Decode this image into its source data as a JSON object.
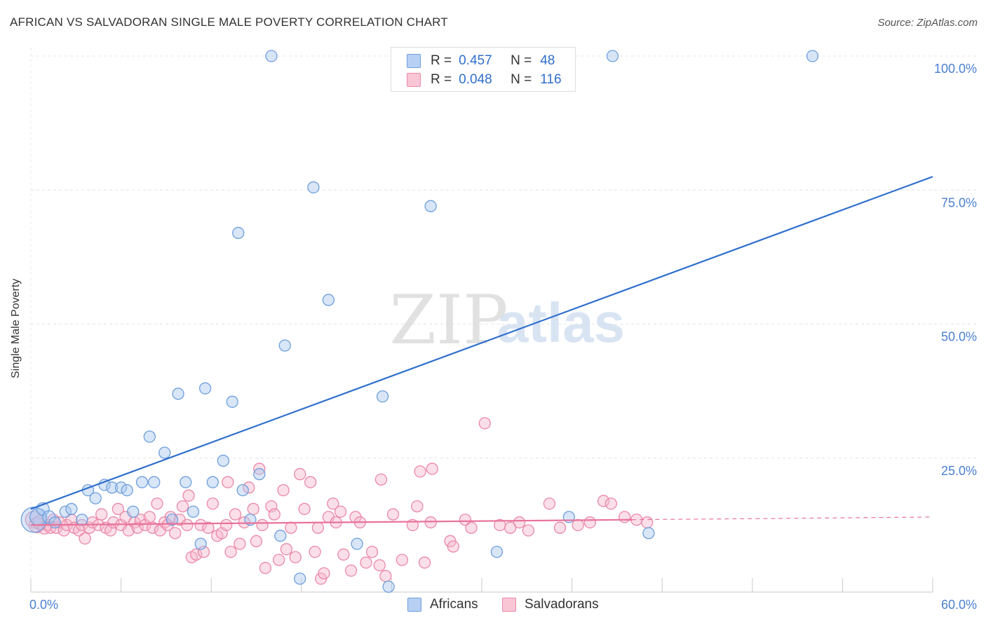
{
  "title": "AFRICAN VS SALVADORAN SINGLE MALE POVERTY CORRELATION CHART",
  "source": "Source: ZipAtlas.com",
  "watermark": {
    "zip": "ZIP",
    "atlas": "atlas"
  },
  "colors": {
    "africans_fill": "#a9c7f0",
    "africans_stroke": "#6f9fdc",
    "africans_line": "#2f6fcc",
    "salvadorans_fill": "#f7b8cb",
    "salvadorans_stroke": "#ea88a8",
    "salvadorans_line": "#e8739a",
    "grid": "#e4e4e4",
    "axis_text": "#4a7fd0"
  },
  "legend_top": {
    "africans": {
      "r_label": "R =",
      "r_value": "0.457",
      "n_label": "N =",
      "n_value": "48"
    },
    "salvadorans": {
      "r_label": "R =",
      "r_value": "0.048",
      "n_label": "N =",
      "n_value": "116"
    }
  },
  "legend_bottom": {
    "africans": "Africans",
    "salvadorans": "Salvadorans"
  },
  "chart_data": {
    "type": "scatter",
    "title": "AFRICAN VS SALVADORAN SINGLE MALE POVERTY CORRELATION CHART",
    "xlabel": "",
    "ylabel": "Single Male Poverty",
    "xlim": [
      0,
      60
    ],
    "ylim": [
      0,
      100
    ],
    "x_tick_labels": [
      "0.0%",
      "60.0%"
    ],
    "y_tick_labels": [
      "25.0%",
      "50.0%",
      "75.0%",
      "100.0%"
    ],
    "y_ticks": [
      25,
      50,
      75,
      100
    ],
    "grid": true,
    "legend_position": "bottom",
    "series": [
      {
        "name": "Africans",
        "r": 0.457,
        "n": 48,
        "trend": {
          "x": [
            0,
            60
          ],
          "y": [
            15.5,
            77.5
          ],
          "style": "solid"
        },
        "points": [
          {
            "x": 0.2,
            "y": 13.5,
            "s": 18
          },
          {
            "x": 0.5,
            "y": 14.0,
            "s": 12
          },
          {
            "x": 0.8,
            "y": 15.5,
            "s": 9
          },
          {
            "x": 1.2,
            "y": 14.0,
            "s": 9
          },
          {
            "x": 1.6,
            "y": 13.0,
            "s": 8
          },
          {
            "x": 2.3,
            "y": 15.0,
            "s": 8
          },
          {
            "x": 2.7,
            "y": 15.5,
            "s": 8
          },
          {
            "x": 3.4,
            "y": 13.5,
            "s": 8
          },
          {
            "x": 3.8,
            "y": 19.0,
            "s": 8
          },
          {
            "x": 4.3,
            "y": 17.5,
            "s": 8
          },
          {
            "x": 4.9,
            "y": 20.0,
            "s": 8
          },
          {
            "x": 5.4,
            "y": 19.5,
            "s": 8
          },
          {
            "x": 6.0,
            "y": 19.5,
            "s": 8
          },
          {
            "x": 6.4,
            "y": 19.0,
            "s": 8
          },
          {
            "x": 6.8,
            "y": 15.0,
            "s": 8
          },
          {
            "x": 7.4,
            "y": 20.5,
            "s": 8
          },
          {
            "x": 7.9,
            "y": 29.0,
            "s": 8
          },
          {
            "x": 8.2,
            "y": 20.5,
            "s": 8
          },
          {
            "x": 8.9,
            "y": 26.0,
            "s": 8
          },
          {
            "x": 9.4,
            "y": 13.5,
            "s": 8
          },
          {
            "x": 9.8,
            "y": 37.0,
            "s": 8
          },
          {
            "x": 10.3,
            "y": 20.5,
            "s": 8
          },
          {
            "x": 10.8,
            "y": 15.0,
            "s": 8
          },
          {
            "x": 11.3,
            "y": 9.0,
            "s": 8
          },
          {
            "x": 11.6,
            "y": 38.0,
            "s": 8
          },
          {
            "x": 12.1,
            "y": 20.5,
            "s": 8
          },
          {
            "x": 12.8,
            "y": 24.5,
            "s": 8
          },
          {
            "x": 13.4,
            "y": 35.5,
            "s": 8
          },
          {
            "x": 13.8,
            "y": 67.0,
            "s": 8
          },
          {
            "x": 14.1,
            "y": 19.0,
            "s": 8
          },
          {
            "x": 14.6,
            "y": 13.5,
            "s": 8
          },
          {
            "x": 15.2,
            "y": 22.0,
            "s": 8
          },
          {
            "x": 16.0,
            "y": 100.0,
            "s": 8
          },
          {
            "x": 16.6,
            "y": 10.5,
            "s": 8
          },
          {
            "x": 16.9,
            "y": 46.0,
            "s": 8
          },
          {
            "x": 17.9,
            "y": 2.5,
            "s": 8
          },
          {
            "x": 18.8,
            "y": 75.5,
            "s": 8
          },
          {
            "x": 19.8,
            "y": 54.5,
            "s": 8
          },
          {
            "x": 21.7,
            "y": 9.0,
            "s": 8
          },
          {
            "x": 23.4,
            "y": 36.5,
            "s": 8
          },
          {
            "x": 23.8,
            "y": 1.0,
            "s": 8
          },
          {
            "x": 26.6,
            "y": 72.0,
            "s": 8
          },
          {
            "x": 28.0,
            "y": 100.0,
            "s": 8
          },
          {
            "x": 31.0,
            "y": 7.5,
            "s": 8
          },
          {
            "x": 35.8,
            "y": 14.0,
            "s": 8
          },
          {
            "x": 38.7,
            "y": 100.0,
            "s": 8
          },
          {
            "x": 41.1,
            "y": 11.0,
            "s": 8
          },
          {
            "x": 52.0,
            "y": 100.0,
            "s": 8
          }
        ]
      },
      {
        "name": "Salvadorans",
        "r": 0.048,
        "n": 116,
        "trend": {
          "x": [
            0,
            40
          ],
          "y": [
            12.5,
            13.5
          ],
          "style": "solid",
          "extension": {
            "x": [
              40,
              60
            ],
            "y": [
              13.5,
              14.0
            ],
            "style": "dashed"
          }
        },
        "points": [
          {
            "x": 0.2,
            "y": 13.5,
            "s": 12
          },
          {
            "x": 0.4,
            "y": 12.5,
            "s": 11
          },
          {
            "x": 0.6,
            "y": 13.0,
            "s": 10
          },
          {
            "x": 0.9,
            "y": 12.0,
            "s": 9
          },
          {
            "x": 1.1,
            "y": 12.5,
            "s": 8
          },
          {
            "x": 1.3,
            "y": 12.0,
            "s": 8
          },
          {
            "x": 1.5,
            "y": 13.5,
            "s": 8
          },
          {
            "x": 1.7,
            "y": 12.0,
            "s": 8
          },
          {
            "x": 1.9,
            "y": 13.0,
            "s": 8
          },
          {
            "x": 2.2,
            "y": 11.5,
            "s": 8
          },
          {
            "x": 2.4,
            "y": 12.5,
            "s": 8
          },
          {
            "x": 2.7,
            "y": 13.5,
            "s": 8
          },
          {
            "x": 2.9,
            "y": 12.0,
            "s": 8
          },
          {
            "x": 3.2,
            "y": 11.5,
            "s": 8
          },
          {
            "x": 3.4,
            "y": 12.5,
            "s": 8
          },
          {
            "x": 3.6,
            "y": 10.0,
            "s": 8
          },
          {
            "x": 3.9,
            "y": 12.0,
            "s": 8
          },
          {
            "x": 4.1,
            "y": 13.0,
            "s": 8
          },
          {
            "x": 4.5,
            "y": 12.5,
            "s": 8
          },
          {
            "x": 4.7,
            "y": 14.5,
            "s": 8
          },
          {
            "x": 5.0,
            "y": 12.0,
            "s": 8
          },
          {
            "x": 5.3,
            "y": 11.5,
            "s": 8
          },
          {
            "x": 5.5,
            "y": 13.0,
            "s": 8
          },
          {
            "x": 5.8,
            "y": 15.5,
            "s": 8
          },
          {
            "x": 6.0,
            "y": 12.5,
            "s": 8
          },
          {
            "x": 6.3,
            "y": 14.0,
            "s": 8
          },
          {
            "x": 6.5,
            "y": 11.5,
            "s": 8
          },
          {
            "x": 6.9,
            "y": 13.0,
            "s": 8
          },
          {
            "x": 7.1,
            "y": 12.0,
            "s": 8
          },
          {
            "x": 7.3,
            "y": 13.5,
            "s": 8
          },
          {
            "x": 7.6,
            "y": 12.5,
            "s": 8
          },
          {
            "x": 7.9,
            "y": 14.0,
            "s": 8
          },
          {
            "x": 8.1,
            "y": 12.0,
            "s": 8
          },
          {
            "x": 8.4,
            "y": 16.5,
            "s": 8
          },
          {
            "x": 8.6,
            "y": 11.5,
            "s": 8
          },
          {
            "x": 8.9,
            "y": 13.0,
            "s": 8
          },
          {
            "x": 9.1,
            "y": 12.5,
            "s": 8
          },
          {
            "x": 9.3,
            "y": 14.0,
            "s": 8
          },
          {
            "x": 9.6,
            "y": 11.0,
            "s": 8
          },
          {
            "x": 9.9,
            "y": 13.5,
            "s": 8
          },
          {
            "x": 10.1,
            "y": 16.0,
            "s": 8
          },
          {
            "x": 10.4,
            "y": 12.5,
            "s": 8
          },
          {
            "x": 10.5,
            "y": 18.0,
            "s": 8
          },
          {
            "x": 10.7,
            "y": 6.5,
            "s": 8
          },
          {
            "x": 11.0,
            "y": 7.0,
            "s": 8
          },
          {
            "x": 11.3,
            "y": 12.5,
            "s": 8
          },
          {
            "x": 11.5,
            "y": 7.5,
            "s": 8
          },
          {
            "x": 11.8,
            "y": 12.0,
            "s": 8
          },
          {
            "x": 12.1,
            "y": 16.5,
            "s": 8
          },
          {
            "x": 12.4,
            "y": 10.5,
            "s": 8
          },
          {
            "x": 12.7,
            "y": 11.0,
            "s": 8
          },
          {
            "x": 13.0,
            "y": 12.5,
            "s": 8
          },
          {
            "x": 13.1,
            "y": 20.5,
            "s": 8
          },
          {
            "x": 13.3,
            "y": 7.5,
            "s": 8
          },
          {
            "x": 13.6,
            "y": 14.5,
            "s": 8
          },
          {
            "x": 13.9,
            "y": 9.0,
            "s": 8
          },
          {
            "x": 14.2,
            "y": 13.0,
            "s": 8
          },
          {
            "x": 14.5,
            "y": 19.5,
            "s": 8
          },
          {
            "x": 14.8,
            "y": 15.5,
            "s": 8
          },
          {
            "x": 15.0,
            "y": 9.5,
            "s": 8
          },
          {
            "x": 15.2,
            "y": 23.0,
            "s": 8
          },
          {
            "x": 15.4,
            "y": 12.5,
            "s": 8
          },
          {
            "x": 15.6,
            "y": 4.5,
            "s": 8
          },
          {
            "x": 16.0,
            "y": 16.0,
            "s": 8
          },
          {
            "x": 16.2,
            "y": 14.5,
            "s": 8
          },
          {
            "x": 16.5,
            "y": 6.0,
            "s": 8
          },
          {
            "x": 16.8,
            "y": 19.0,
            "s": 8
          },
          {
            "x": 17.0,
            "y": 8.0,
            "s": 8
          },
          {
            "x": 17.3,
            "y": 12.0,
            "s": 8
          },
          {
            "x": 17.6,
            "y": 6.5,
            "s": 8
          },
          {
            "x": 17.9,
            "y": 22.0,
            "s": 8
          },
          {
            "x": 18.2,
            "y": 15.5,
            "s": 8
          },
          {
            "x": 18.6,
            "y": 20.5,
            "s": 8
          },
          {
            "x": 18.9,
            "y": 7.5,
            "s": 8
          },
          {
            "x": 19.1,
            "y": 12.0,
            "s": 8
          },
          {
            "x": 19.3,
            "y": 2.5,
            "s": 8
          },
          {
            "x": 19.5,
            "y": 3.5,
            "s": 8
          },
          {
            "x": 19.8,
            "y": 14.0,
            "s": 8
          },
          {
            "x": 20.1,
            "y": 16.5,
            "s": 8
          },
          {
            "x": 20.3,
            "y": 13.0,
            "s": 8
          },
          {
            "x": 20.6,
            "y": 15.0,
            "s": 8
          },
          {
            "x": 20.8,
            "y": 7.0,
            "s": 8
          },
          {
            "x": 21.3,
            "y": 4.0,
            "s": 8
          },
          {
            "x": 21.6,
            "y": 14.0,
            "s": 8
          },
          {
            "x": 21.9,
            "y": 13.0,
            "s": 8
          },
          {
            "x": 22.3,
            "y": 5.5,
            "s": 8
          },
          {
            "x": 22.7,
            "y": 7.5,
            "s": 8
          },
          {
            "x": 23.2,
            "y": 5.0,
            "s": 8
          },
          {
            "x": 23.3,
            "y": 21.0,
            "s": 8
          },
          {
            "x": 23.6,
            "y": 3.0,
            "s": 8
          },
          {
            "x": 24.1,
            "y": 14.5,
            "s": 8
          },
          {
            "x": 24.7,
            "y": 6.0,
            "s": 8
          },
          {
            "x": 25.4,
            "y": 12.5,
            "s": 8
          },
          {
            "x": 25.7,
            "y": 16.0,
            "s": 8
          },
          {
            "x": 25.9,
            "y": 22.5,
            "s": 8
          },
          {
            "x": 26.2,
            "y": 5.5,
            "s": 8
          },
          {
            "x": 26.6,
            "y": 13.0,
            "s": 8
          },
          {
            "x": 26.7,
            "y": 23.0,
            "s": 8
          },
          {
            "x": 27.9,
            "y": 9.5,
            "s": 8
          },
          {
            "x": 28.1,
            "y": 8.5,
            "s": 8
          },
          {
            "x": 28.9,
            "y": 13.5,
            "s": 8
          },
          {
            "x": 29.3,
            "y": 12.0,
            "s": 8
          },
          {
            "x": 30.2,
            "y": 31.5,
            "s": 8
          },
          {
            "x": 31.2,
            "y": 12.5,
            "s": 8
          },
          {
            "x": 31.9,
            "y": 12.0,
            "s": 8
          },
          {
            "x": 32.5,
            "y": 13.0,
            "s": 8
          },
          {
            "x": 33.1,
            "y": 11.5,
            "s": 8
          },
          {
            "x": 34.5,
            "y": 16.5,
            "s": 8
          },
          {
            "x": 35.2,
            "y": 12.0,
            "s": 8
          },
          {
            "x": 36.4,
            "y": 12.5,
            "s": 8
          },
          {
            "x": 37.2,
            "y": 13.0,
            "s": 8
          },
          {
            "x": 38.1,
            "y": 17.0,
            "s": 8
          },
          {
            "x": 38.6,
            "y": 16.5,
            "s": 8
          },
          {
            "x": 39.5,
            "y": 14.0,
            "s": 8
          },
          {
            "x": 40.3,
            "y": 13.5,
            "s": 8
          },
          {
            "x": 41.0,
            "y": 13.0,
            "s": 8
          }
        ]
      }
    ]
  }
}
